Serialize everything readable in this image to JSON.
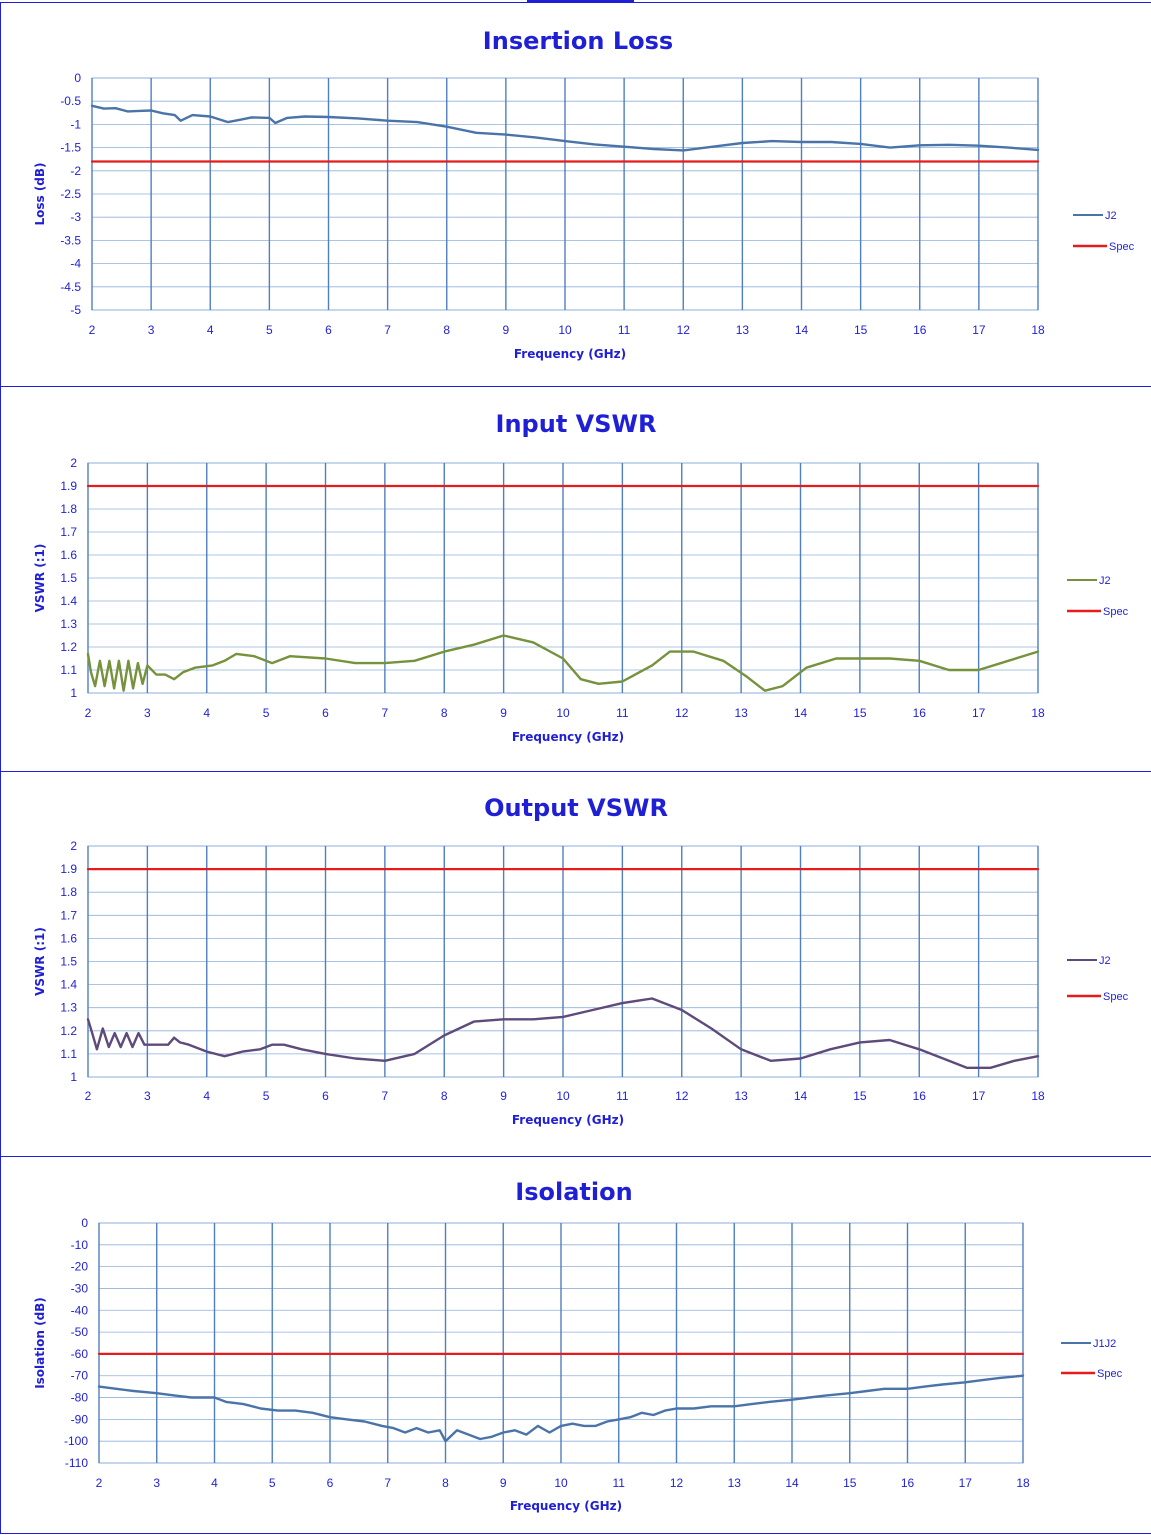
{
  "chart_data": [
    {
      "type": "line",
      "title": "Insertion Loss",
      "xlabel": "Frequency (GHz)",
      "ylabel": "Loss (dB)",
      "xlim": [
        2,
        18
      ],
      "ylim": [
        -5,
        0
      ],
      "xticks": [
        2,
        3,
        4,
        5,
        6,
        7,
        8,
        9,
        10,
        11,
        12,
        13,
        14,
        15,
        16,
        17,
        18
      ],
      "yticks": [
        0,
        -0.5,
        -1,
        -1.5,
        -2,
        -2.5,
        -3,
        -3.5,
        -4,
        -4.5,
        -5
      ],
      "ytick_labels": [
        "0",
        "-0.5",
        "-1",
        "-1.5",
        "-2",
        "-2.5",
        "-3",
        "-3.5",
        "-4",
        "-4.5",
        "-5"
      ],
      "grid": true,
      "legend_position": "right",
      "series": [
        {
          "name": "J2",
          "color": "#4a74a8",
          "x": [
            2,
            2.2,
            2.4,
            2.6,
            2.8,
            3,
            3.2,
            3.4,
            3.5,
            3.7,
            4,
            4.3,
            4.5,
            4.7,
            5,
            5.1,
            5.3,
            5.6,
            6,
            6.5,
            7,
            7.5,
            8,
            8.5,
            9,
            9.5,
            10,
            10.5,
            11,
            11.5,
            12,
            12.5,
            13,
            13.5,
            14,
            14.5,
            15,
            15.5,
            16,
            16.5,
            17,
            17.5,
            18
          ],
          "y": [
            -0.6,
            -0.66,
            -0.65,
            -0.72,
            -0.71,
            -0.7,
            -0.76,
            -0.8,
            -0.92,
            -0.8,
            -0.83,
            -0.95,
            -0.9,
            -0.85,
            -0.86,
            -0.97,
            -0.86,
            -0.83,
            -0.84,
            -0.87,
            -0.92,
            -0.95,
            -1.05,
            -1.18,
            -1.22,
            -1.28,
            -1.36,
            -1.43,
            -1.48,
            -1.53,
            -1.56,
            -1.48,
            -1.4,
            -1.36,
            -1.38,
            -1.38,
            -1.42,
            -1.5,
            -1.45,
            -1.44,
            -1.46,
            -1.5,
            -1.55
          ]
        },
        {
          "name": "Spec",
          "color": "#e61c1c",
          "x": [
            2,
            18
          ],
          "y": [
            -1.8,
            -1.8
          ]
        }
      ]
    },
    {
      "type": "line",
      "title": "Input VSWR",
      "xlabel": "Frequency (GHz)",
      "ylabel": "VSWR (:1)",
      "xlim": [
        2,
        18
      ],
      "ylim": [
        1,
        2
      ],
      "xticks": [
        2,
        3,
        4,
        5,
        6,
        7,
        8,
        9,
        10,
        11,
        12,
        13,
        14,
        15,
        16,
        17,
        18
      ],
      "yticks": [
        2,
        1.9,
        1.8,
        1.7,
        1.6,
        1.5,
        1.4,
        1.3,
        1.2,
        1.1,
        1
      ],
      "ytick_labels": [
        "2",
        "1.9",
        "1.8",
        "1.7",
        "1.6",
        "1.5",
        "1.4",
        "1.3",
        "1.2",
        "1.1",
        "1"
      ],
      "grid": true,
      "legend_position": "right",
      "series": [
        {
          "name": "J2",
          "color": "#76923c",
          "x": [
            2,
            2.05,
            2.12,
            2.2,
            2.28,
            2.36,
            2.44,
            2.52,
            2.6,
            2.68,
            2.76,
            2.84,
            2.92,
            3,
            3.15,
            3.3,
            3.45,
            3.6,
            3.8,
            4.1,
            4.3,
            4.5,
            4.8,
            5.1,
            5.4,
            6,
            6.5,
            7,
            7.5,
            8,
            8.5,
            9,
            9.5,
            10,
            10.3,
            10.6,
            11,
            11.5,
            11.8,
            12.2,
            12.7,
            13.1,
            13.4,
            13.7,
            14.1,
            14.6,
            15,
            15.5,
            16,
            16.5,
            17,
            17.5,
            18
          ],
          "y": [
            1.17,
            1.09,
            1.03,
            1.14,
            1.03,
            1.14,
            1.02,
            1.14,
            1.01,
            1.14,
            1.02,
            1.13,
            1.04,
            1.12,
            1.08,
            1.08,
            1.06,
            1.09,
            1.11,
            1.12,
            1.14,
            1.17,
            1.16,
            1.13,
            1.16,
            1.15,
            1.13,
            1.13,
            1.14,
            1.18,
            1.21,
            1.25,
            1.22,
            1.15,
            1.06,
            1.04,
            1.05,
            1.12,
            1.18,
            1.18,
            1.14,
            1.07,
            1.01,
            1.03,
            1.11,
            1.15,
            1.15,
            1.15,
            1.14,
            1.1,
            1.1,
            1.14,
            1.18
          ]
        },
        {
          "name": "Spec",
          "color": "#e61c1c",
          "x": [
            2,
            18
          ],
          "y": [
            1.9,
            1.9
          ]
        }
      ]
    },
    {
      "type": "line",
      "title": "Output VSWR",
      "xlabel": "Frequency (GHz)",
      "ylabel": "VSWR (:1)",
      "xlim": [
        2,
        18
      ],
      "ylim": [
        1,
        2
      ],
      "xticks": [
        2,
        3,
        4,
        5,
        6,
        7,
        8,
        9,
        10,
        11,
        12,
        13,
        14,
        15,
        16,
        17,
        18
      ],
      "yticks": [
        2,
        1.9,
        1.8,
        1.7,
        1.6,
        1.5,
        1.4,
        1.3,
        1.2,
        1.1,
        1
      ],
      "ytick_labels": [
        "2",
        "1.9",
        "1.8",
        "1.7",
        "1.6",
        "1.5",
        "1.4",
        "1.3",
        "1.2",
        "1.1",
        "1"
      ],
      "grid": true,
      "legend_position": "right",
      "series": [
        {
          "name": "J2",
          "color": "#5f4b7b",
          "x": [
            2,
            2.07,
            2.15,
            2.25,
            2.35,
            2.45,
            2.55,
            2.65,
            2.75,
            2.85,
            2.95,
            3.05,
            3.2,
            3.35,
            3.45,
            3.55,
            3.7,
            4,
            4.3,
            4.6,
            4.9,
            5.1,
            5.3,
            5.6,
            6,
            6.5,
            7,
            7.5,
            8,
            8.5,
            9,
            9.5,
            10,
            10.5,
            11,
            11.5,
            12,
            12.5,
            13,
            13.5,
            14,
            14.5,
            15,
            15.5,
            16,
            16.5,
            16.8,
            17.2,
            17.6,
            18
          ],
          "y": [
            1.25,
            1.19,
            1.12,
            1.21,
            1.13,
            1.19,
            1.13,
            1.19,
            1.13,
            1.19,
            1.14,
            1.14,
            1.14,
            1.14,
            1.17,
            1.15,
            1.14,
            1.11,
            1.09,
            1.11,
            1.12,
            1.14,
            1.14,
            1.12,
            1.1,
            1.08,
            1.07,
            1.1,
            1.18,
            1.24,
            1.25,
            1.25,
            1.26,
            1.29,
            1.32,
            1.34,
            1.29,
            1.21,
            1.12,
            1.07,
            1.08,
            1.12,
            1.15,
            1.16,
            1.12,
            1.07,
            1.04,
            1.04,
            1.07,
            1.09
          ]
        },
        {
          "name": "Spec",
          "color": "#e61c1c",
          "x": [
            2,
            18
          ],
          "y": [
            1.9,
            1.9
          ]
        }
      ]
    },
    {
      "type": "line",
      "title": "Isolation",
      "xlabel": "Frequency (GHz)",
      "ylabel": "Isolation (dB)",
      "xlim": [
        2,
        18
      ],
      "ylim": [
        -110,
        0
      ],
      "xticks": [
        2,
        3,
        4,
        5,
        6,
        7,
        8,
        9,
        10,
        11,
        12,
        13,
        14,
        15,
        16,
        17,
        18
      ],
      "yticks": [
        0,
        -10,
        -20,
        -30,
        -40,
        -50,
        -60,
        -70,
        -80,
        -90,
        -100,
        -110
      ],
      "ytick_labels": [
        "0",
        "-10",
        "-20",
        "-30",
        "-40",
        "-50",
        "-60",
        "-70",
        "-80",
        "-90",
        "-100",
        "-110"
      ],
      "grid": true,
      "legend_position": "right",
      "series": [
        {
          "name": "J1J2",
          "color": "#4a74a8",
          "x": [
            2,
            2.3,
            2.6,
            3,
            3.3,
            3.6,
            4,
            4.2,
            4.5,
            4.8,
            5.1,
            5.4,
            5.7,
            6,
            6.3,
            6.6,
            6.9,
            7.1,
            7.3,
            7.5,
            7.7,
            7.9,
            8,
            8.2,
            8.4,
            8.6,
            8.8,
            9,
            9.2,
            9.4,
            9.6,
            9.8,
            10,
            10.2,
            10.4,
            10.6,
            10.8,
            11,
            11.2,
            11.4,
            11.6,
            11.8,
            12,
            12.3,
            12.6,
            13,
            13.3,
            13.6,
            14,
            14.3,
            14.6,
            15,
            15.3,
            15.6,
            16,
            16.3,
            16.6,
            17,
            17.3,
            17.6,
            18
          ],
          "y": [
            -75,
            -76,
            -77,
            -78,
            -79,
            -80,
            -80,
            -82,
            -83,
            -85,
            -86,
            -86,
            -87,
            -89,
            -90,
            -91,
            -93,
            -94,
            -96,
            -94,
            -96,
            -95,
            -100,
            -95,
            -97,
            -99,
            -98,
            -96,
            -95,
            -97,
            -93,
            -96,
            -93,
            -92,
            -93,
            -93,
            -91,
            -90,
            -89,
            -87,
            -88,
            -86,
            -85,
            -85,
            -84,
            -84,
            -83,
            -82,
            -81,
            -80,
            -79,
            -78,
            -77,
            -76,
            -76,
            -75,
            -74,
            -73,
            -72,
            -71,
            -70
          ]
        },
        {
          "name": "Spec",
          "color": "#e61c1c",
          "x": [
            2,
            18
          ],
          "y": [
            -60,
            -60
          ]
        }
      ]
    }
  ]
}
